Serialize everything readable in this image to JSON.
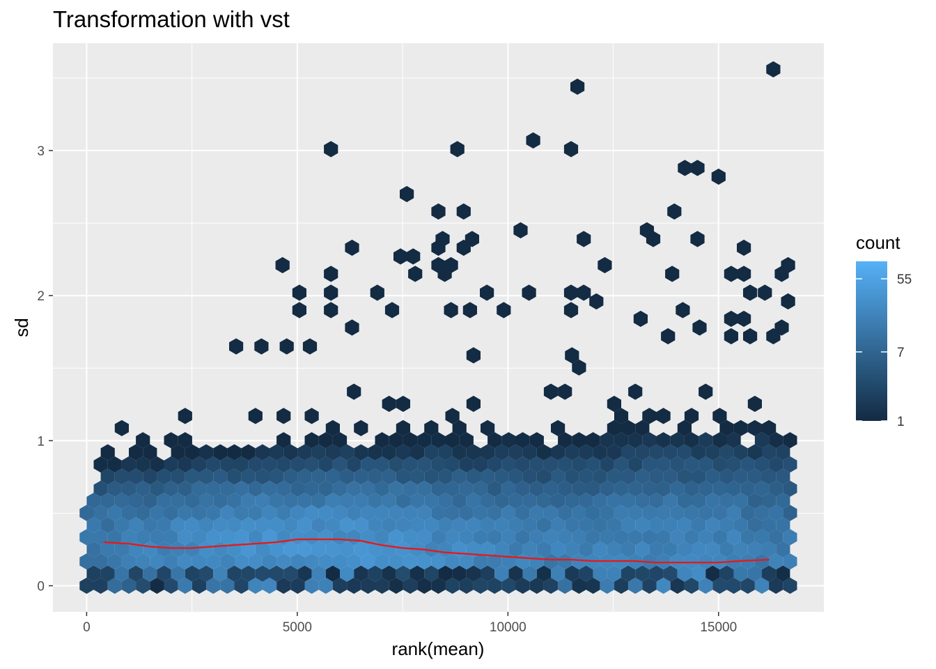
{
  "chart_data": {
    "type": "hexbin",
    "title": "Transformation with vst",
    "xlabel": "rank(mean)",
    "ylabel": "sd",
    "xlim": [
      -800,
      17500
    ],
    "ylim": [
      -0.18,
      3.74
    ],
    "x_ticks": [
      0,
      5000,
      10000,
      15000
    ],
    "x_tick_labels": [
      "0",
      "5000",
      "10000",
      "15000"
    ],
    "y_ticks": [
      0,
      1,
      2,
      3
    ],
    "y_tick_labels": [
      "0",
      "1",
      "2",
      "3"
    ],
    "grid": true,
    "legend": {
      "title": "count",
      "position": "right",
      "scale": "log",
      "breaks": [
        55,
        7,
        1
      ],
      "break_labels": [
        "55",
        "7",
        "1"
      ],
      "min": 1,
      "max": 90,
      "low_color": "#132B43",
      "high_color": "#56B1F7"
    },
    "panel_background": "#EBEBEB",
    "trend": {
      "name": "",
      "color": "#E41A1C",
      "x": [
        400,
        1000,
        1500,
        2000,
        2500,
        3000,
        3500,
        4000,
        4500,
        5000,
        5500,
        6000,
        6500,
        7000,
        7500,
        8000,
        8500,
        9000,
        9500,
        10000,
        10500,
        11000,
        11500,
        12000,
        12500,
        13000,
        13500,
        14000,
        14500,
        15000,
        15500,
        16200
      ],
      "y": [
        0.3,
        0.29,
        0.27,
        0.26,
        0.26,
        0.27,
        0.28,
        0.29,
        0.3,
        0.32,
        0.32,
        0.32,
        0.31,
        0.28,
        0.26,
        0.25,
        0.23,
        0.22,
        0.21,
        0.2,
        0.19,
        0.18,
        0.18,
        0.17,
        0.17,
        0.17,
        0.16,
        0.16,
        0.16,
        0.16,
        0.17,
        0.18
      ]
    },
    "outlier_hexes": [
      [
        16300,
        3.56
      ],
      [
        11650,
        3.44
      ],
      [
        5800,
        3.01
      ],
      [
        8800,
        3.01
      ],
      [
        11500,
        3.01
      ],
      [
        10600,
        3.07
      ],
      [
        14200,
        2.88
      ],
      [
        14500,
        2.88
      ],
      [
        15000,
        2.82
      ],
      [
        7600,
        2.7
      ],
      [
        8350,
        2.58
      ],
      [
        8950,
        2.58
      ],
      [
        13950,
        2.58
      ],
      [
        10300,
        2.45
      ],
      [
        13300,
        2.45
      ],
      [
        13450,
        2.39
      ],
      [
        9150,
        2.39
      ],
      [
        8450,
        2.39
      ],
      [
        11800,
        2.39
      ],
      [
        14500,
        2.39
      ],
      [
        8350,
        2.33
      ],
      [
        8950,
        2.33
      ],
      [
        6300,
        2.33
      ],
      [
        15600,
        2.33
      ],
      [
        7450,
        2.27
      ],
      [
        7750,
        2.27
      ],
      [
        4650,
        2.21
      ],
      [
        8350,
        2.21
      ],
      [
        8650,
        2.21
      ],
      [
        12300,
        2.21
      ],
      [
        16650,
        2.21
      ],
      [
        5800,
        2.15
      ],
      [
        7800,
        2.15
      ],
      [
        8500,
        2.15
      ],
      [
        13900,
        2.15
      ],
      [
        15300,
        2.15
      ],
      [
        15600,
        2.15
      ],
      [
        16500,
        2.15
      ],
      [
        5050,
        2.02
      ],
      [
        5800,
        2.02
      ],
      [
        6900,
        2.02
      ],
      [
        9500,
        2.02
      ],
      [
        10500,
        2.02
      ],
      [
        11500,
        2.02
      ],
      [
        11800,
        2.02
      ],
      [
        15750,
        2.02
      ],
      [
        16100,
        2.02
      ],
      [
        5050,
        1.9
      ],
      [
        5800,
        1.9
      ],
      [
        7250,
        1.9
      ],
      [
        8650,
        1.9
      ],
      [
        9100,
        1.9
      ],
      [
        9900,
        1.9
      ],
      [
        11500,
        1.9
      ],
      [
        14150,
        1.9
      ],
      [
        16650,
        1.96
      ],
      [
        12100,
        1.96
      ],
      [
        13150,
        1.84
      ],
      [
        16500,
        1.78
      ],
      [
        14550,
        1.78
      ],
      [
        15300,
        1.84
      ],
      [
        15600,
        1.84
      ],
      [
        13800,
        1.72
      ],
      [
        15300,
        1.72
      ],
      [
        15750,
        1.72
      ],
      [
        16300,
        1.72
      ],
      [
        4750,
        1.65
      ],
      [
        5300,
        1.65
      ],
      [
        6300,
        1.78
      ],
      [
        3550,
        1.65
      ],
      [
        4150,
        1.65
      ]
    ]
  }
}
